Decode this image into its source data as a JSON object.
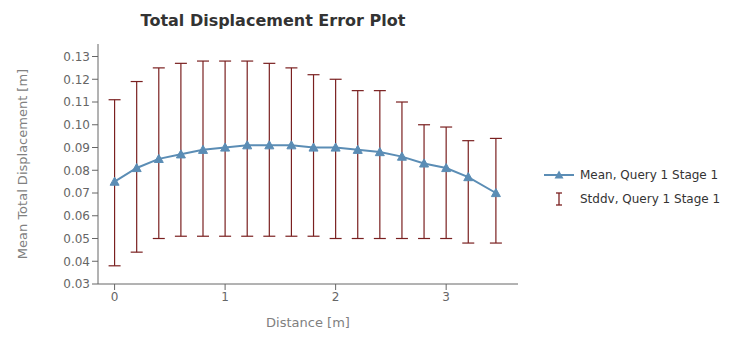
{
  "chart_data": {
    "type": "line",
    "title": "Total Displacement Error Plot",
    "x_label": "Distance [m]",
    "y_label": "Mean Total Displacement [m]",
    "x": [
      0.0,
      0.2,
      0.4,
      0.6,
      0.8,
      1.0,
      1.2,
      1.4,
      1.6,
      1.8,
      2.0,
      2.2,
      2.4,
      2.6,
      2.8,
      3.0,
      3.2,
      3.45
    ],
    "series": [
      {
        "name": "Mean, Query 1 Stage 1",
        "color": "#5b8db5",
        "marker": "triangle",
        "values": [
          0.075,
          0.081,
          0.085,
          0.087,
          0.089,
          0.09,
          0.091,
          0.091,
          0.091,
          0.09,
          0.09,
          0.089,
          0.088,
          0.086,
          0.083,
          0.081,
          0.077,
          0.07
        ]
      },
      {
        "name": "Stddv, Query 1 Stage 1",
        "type": "errorbar",
        "color": "#7a2020",
        "upper": [
          0.111,
          0.119,
          0.125,
          0.127,
          0.128,
          0.128,
          0.128,
          0.127,
          0.125,
          0.122,
          0.12,
          0.115,
          0.115,
          0.11,
          0.1,
          0.099,
          0.093,
          0.094
        ],
        "lower": [
          0.038,
          0.044,
          0.05,
          0.051,
          0.051,
          0.051,
          0.051,
          0.051,
          0.051,
          0.051,
          0.05,
          0.05,
          0.05,
          0.05,
          0.05,
          0.05,
          0.048,
          0.048
        ]
      }
    ],
    "xlim": [
      -0.15,
      3.65
    ],
    "ylim": [
      0.03,
      0.1355
    ],
    "xticks": [
      0,
      1,
      2,
      3
    ],
    "yticks": [
      0.03,
      0.04,
      0.05,
      0.06,
      0.07,
      0.08,
      0.09,
      {
        "value": 0.1,
        "label": "0.10"
      },
      0.11,
      0.12,
      0.13
    ]
  }
}
